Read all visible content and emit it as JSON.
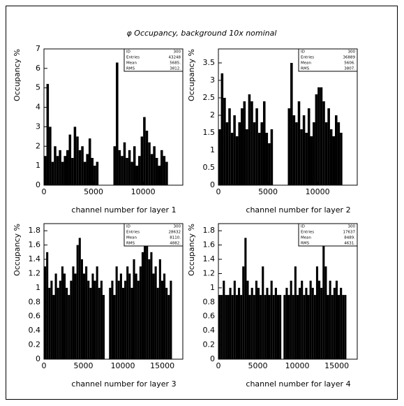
{
  "title": "φ Occupancy, background 10x nominal",
  "chart_data": [
    {
      "type": "histogram",
      "xlabel": "channel number for layer 1",
      "ylabel": "Occupancy %",
      "stats": [
        [
          "ID",
          "300"
        ],
        [
          "Entries",
          "43248"
        ],
        [
          "Mean",
          "5685."
        ],
        [
          "RMS",
          "3812."
        ]
      ],
      "bins": [
        0,
        250,
        500,
        750,
        1000,
        1250,
        1500,
        1750,
        2000,
        2250,
        2500,
        2750,
        3000,
        3250,
        3500,
        3750,
        4000,
        4250,
        4500,
        4750,
        5000,
        5250,
        5500,
        5750,
        6000,
        6250,
        6500,
        6750,
        7000,
        7250,
        7500,
        7750,
        8000,
        8250,
        8500,
        8750,
        9000,
        9250,
        9500,
        9750,
        10000,
        10250,
        10500,
        10750,
        11000,
        11250,
        11500,
        11750,
        12000,
        12250,
        12500,
        12750,
        13000,
        13250,
        13500,
        13750,
        14000
      ],
      "values": [
        1.5,
        5.2,
        3.0,
        1.2,
        2.0,
        1.5,
        1.8,
        1.2,
        1.5,
        1.8,
        2.6,
        1.4,
        3.0,
        2.5,
        1.8,
        2.0,
        1.2,
        1.6,
        2.4,
        1.4,
        1.0,
        1.2,
        0,
        0,
        0,
        0,
        0,
        0,
        2.0,
        6.3,
        1.8,
        1.5,
        2.2,
        1.4,
        1.8,
        1.2,
        2.0,
        1.0,
        1.5,
        2.5,
        3.5,
        2.8,
        2.2,
        1.6,
        2.0,
        1.4,
        1.0,
        1.8,
        1.5,
        1.2,
        0,
        0,
        0,
        0,
        0,
        0
      ],
      "color": "#000000",
      "xlim": [
        0,
        14000
      ],
      "xticks": [
        0,
        5000,
        10000
      ],
      "ylim": [
        0,
        7
      ],
      "yticks": [
        0,
        1,
        2,
        3,
        4,
        5,
        6,
        7
      ]
    },
    {
      "type": "histogram",
      "xlabel": "channel number for layer 2",
      "ylabel": "Occupancy %",
      "stats": [
        [
          "ID",
          "300"
        ],
        [
          "Entries",
          "36889"
        ],
        [
          "Mean",
          "5606."
        ],
        [
          "RMS",
          "3807."
        ]
      ],
      "bins": [
        0,
        250,
        500,
        750,
        1000,
        1250,
        1500,
        1750,
        2000,
        2250,
        2500,
        2750,
        3000,
        3250,
        3500,
        3750,
        4000,
        4250,
        4500,
        4750,
        5000,
        5250,
        5500,
        5750,
        6000,
        6250,
        6500,
        6750,
        7000,
        7250,
        7500,
        7750,
        8000,
        8250,
        8500,
        8750,
        9000,
        9250,
        9500,
        9750,
        10000,
        10250,
        10500,
        10750,
        11000,
        11250,
        11500,
        11750,
        12000,
        12250,
        12500,
        12750,
        13000,
        13250,
        13500,
        13750,
        14000
      ],
      "values": [
        1.6,
        3.2,
        2.5,
        1.8,
        2.2,
        1.5,
        2.0,
        1.4,
        1.8,
        2.2,
        2.4,
        1.6,
        2.6,
        2.4,
        1.8,
        2.2,
        1.5,
        1.8,
        2.4,
        1.5,
        1.2,
        1.6,
        0,
        0,
        0,
        0,
        0,
        0,
        2.2,
        3.5,
        2.0,
        1.8,
        2.4,
        1.6,
        2.0,
        1.5,
        2.2,
        1.4,
        1.8,
        2.6,
        2.8,
        2.8,
        2.4,
        1.8,
        2.2,
        1.6,
        1.4,
        2.0,
        1.8,
        1.5,
        0,
        0,
        0,
        0,
        0,
        0
      ],
      "color": "#000000",
      "xlim": [
        0,
        14000
      ],
      "xticks": [
        0,
        5000,
        10000
      ],
      "ylim": [
        0,
        3.9
      ],
      "yticks": [
        0,
        0.5,
        1,
        1.5,
        2,
        2.5,
        3,
        3.5
      ]
    },
    {
      "type": "histogram",
      "xlabel": "channel number for layer 3",
      "ylabel": "Occupancy %",
      "stats": [
        [
          "ID",
          "300"
        ],
        [
          "Entries",
          "28632"
        ],
        [
          "Mean",
          "8110."
        ],
        [
          "RMS",
          "4882."
        ]
      ],
      "bins": [
        0,
        275,
        550,
        825,
        1100,
        1375,
        1650,
        1925,
        2200,
        2475,
        2750,
        3025,
        3300,
        3575,
        3850,
        4125,
        4400,
        4675,
        4950,
        5225,
        5500,
        5775,
        6050,
        6325,
        6600,
        6875,
        7150,
        7425,
        7700,
        7975,
        8250,
        8525,
        8800,
        9075,
        9350,
        9625,
        9900,
        10175,
        10450,
        10725,
        11000,
        11275,
        11550,
        11825,
        12100,
        12375,
        12650,
        12925,
        13200,
        13475,
        13750,
        14025,
        14300,
        14575,
        14850,
        15125,
        15400,
        15675,
        15950,
        16225,
        16500,
        16775,
        17050,
        17325,
        17600
      ],
      "values": [
        1.3,
        1.5,
        1.0,
        1.1,
        0.9,
        1.2,
        1.0,
        1.1,
        1.3,
        1.2,
        1.0,
        0.9,
        1.1,
        1.3,
        1.2,
        1.6,
        1.7,
        1.4,
        1.2,
        1.3,
        1.1,
        1.0,
        1.2,
        1.1,
        1.3,
        1.0,
        1.1,
        0.9,
        0,
        0,
        1.0,
        1.1,
        0.9,
        1.3,
        1.1,
        1.2,
        1.0,
        1.1,
        1.3,
        1.2,
        1.0,
        1.4,
        1.2,
        1.1,
        1.3,
        1.5,
        1.7,
        1.6,
        1.4,
        1.5,
        1.2,
        1.3,
        1.0,
        1.4,
        1.1,
        1.2,
        1.0,
        0.9,
        1.1,
        0,
        0,
        0,
        0,
        0
      ],
      "color": "#000000",
      "xlim": [
        0,
        17600
      ],
      "xticks": [
        0,
        5000,
        10000,
        15000
      ],
      "ylim": [
        0,
        1.9
      ],
      "yticks": [
        0,
        0.2,
        0.4,
        0.6,
        0.8,
        1,
        1.2,
        1.4,
        1.6,
        1.8
      ]
    },
    {
      "type": "histogram",
      "xlabel": "channel number for layer 4",
      "ylabel": "Occupancy %",
      "stats": [
        [
          "ID",
          "300"
        ],
        [
          "Entries",
          "17637"
        ],
        [
          "Mean",
          "8489."
        ],
        [
          "RMS",
          "4631."
        ]
      ],
      "bins": [
        0,
        275,
        550,
        825,
        1100,
        1375,
        1650,
        1925,
        2200,
        2475,
        2750,
        3025,
        3300,
        3575,
        3850,
        4125,
        4400,
        4675,
        4950,
        5225,
        5500,
        5775,
        6050,
        6325,
        6600,
        6875,
        7150,
        7425,
        7700,
        7975,
        8250,
        8525,
        8800,
        9075,
        9350,
        9625,
        9900,
        10175,
        10450,
        10725,
        11000,
        11275,
        11550,
        11825,
        12100,
        12375,
        12650,
        12925,
        13200,
        13475,
        13750,
        14025,
        14300,
        14575,
        14850,
        15125,
        15400,
        15675,
        15950,
        16225,
        16500,
        16775,
        17050,
        17325,
        17600
      ],
      "values": [
        0.9,
        0.9,
        1.1,
        0.9,
        0.9,
        1.0,
        0.9,
        1.1,
        0.9,
        1.0,
        0.9,
        1.3,
        1.7,
        1.1,
        0.9,
        1.0,
        0.9,
        1.1,
        1.0,
        0.9,
        1.3,
        0.9,
        1.0,
        0.9,
        1.1,
        0.9,
        1.0,
        0.9,
        0.9,
        0,
        0.9,
        1.0,
        0.9,
        1.1,
        0.9,
        1.3,
        0.9,
        1.0,
        1.1,
        0.9,
        1.0,
        0.9,
        1.1,
        1.0,
        0.9,
        1.3,
        1.1,
        1.0,
        1.7,
        1.3,
        0.9,
        1.1,
        0.9,
        1.0,
        1.1,
        0.9,
        1.0,
        0.9,
        0.9,
        0,
        0,
        0,
        0,
        0
      ],
      "color": "#000000",
      "xlim": [
        0,
        17600
      ],
      "xticks": [
        0,
        5000,
        10000,
        15000
      ],
      "ylim": [
        0,
        1.9
      ],
      "yticks": [
        0,
        0.2,
        0.4,
        0.6,
        0.8,
        1,
        1.2,
        1.4,
        1.6,
        1.8
      ]
    }
  ]
}
